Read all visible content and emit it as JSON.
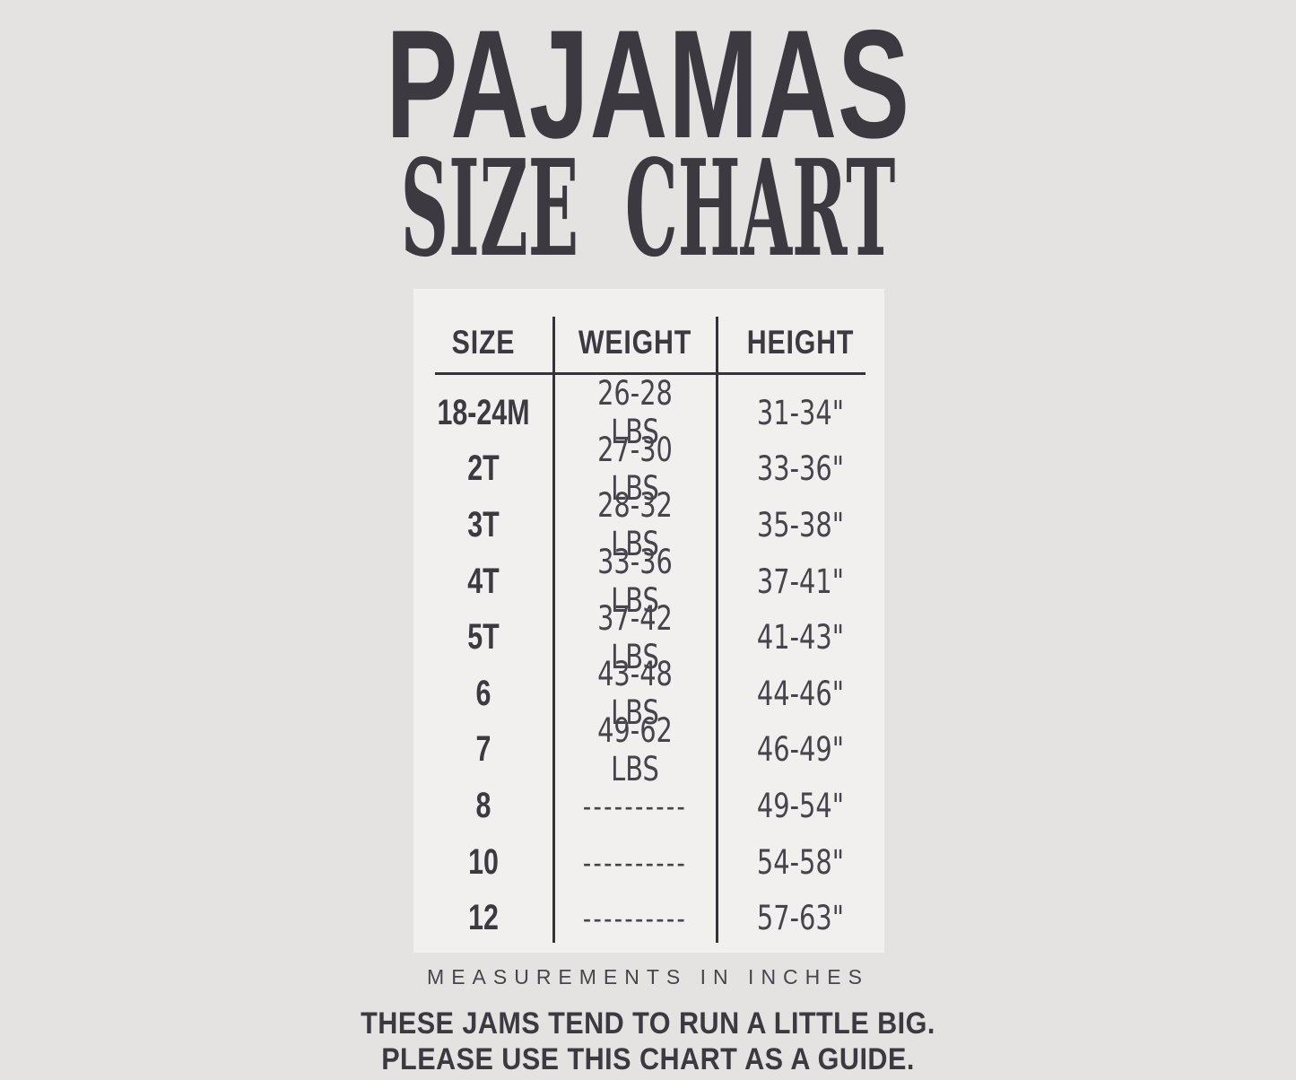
{
  "colors": {
    "background": "#e5e3e2",
    "panel": "#f2f0ef",
    "ink": "#3c3941",
    "line": "#353238",
    "value_ink": "#48444d"
  },
  "header": {
    "title": "PAJAMAS",
    "subtitle": "SIZE CHART"
  },
  "chart_data": {
    "type": "table",
    "title": "PAJAMAS SIZE CHART",
    "columns": [
      "SIZE",
      "WEIGHT",
      "HEIGHT"
    ],
    "rows": [
      [
        "18-24M",
        "26-28 LBS",
        "31-34\""
      ],
      [
        "2T",
        "27-30 LBS",
        "33-36\""
      ],
      [
        "3T",
        "28-32 LBS",
        "35-38\""
      ],
      [
        "4T",
        "33-36 LBS",
        "37-41\""
      ],
      [
        "5T",
        "37-42 LBS",
        "41-43\""
      ],
      [
        "6",
        "43-48 LBS",
        "44-46\""
      ],
      [
        "7",
        "49-62 LBS",
        "46-49\""
      ],
      [
        "8",
        "----------",
        "49-54\""
      ],
      [
        "10",
        "----------",
        "54-58\""
      ],
      [
        "12",
        "----------",
        "57-63\""
      ]
    ]
  },
  "footer": {
    "measurements_note": "MEASUREMENTS IN INCHES",
    "disclaimer_line1": "THESE JAMS TEND TO RUN A LITTLE BIG.",
    "disclaimer_line2": "PLEASE USE THIS CHART AS A GUIDE."
  }
}
